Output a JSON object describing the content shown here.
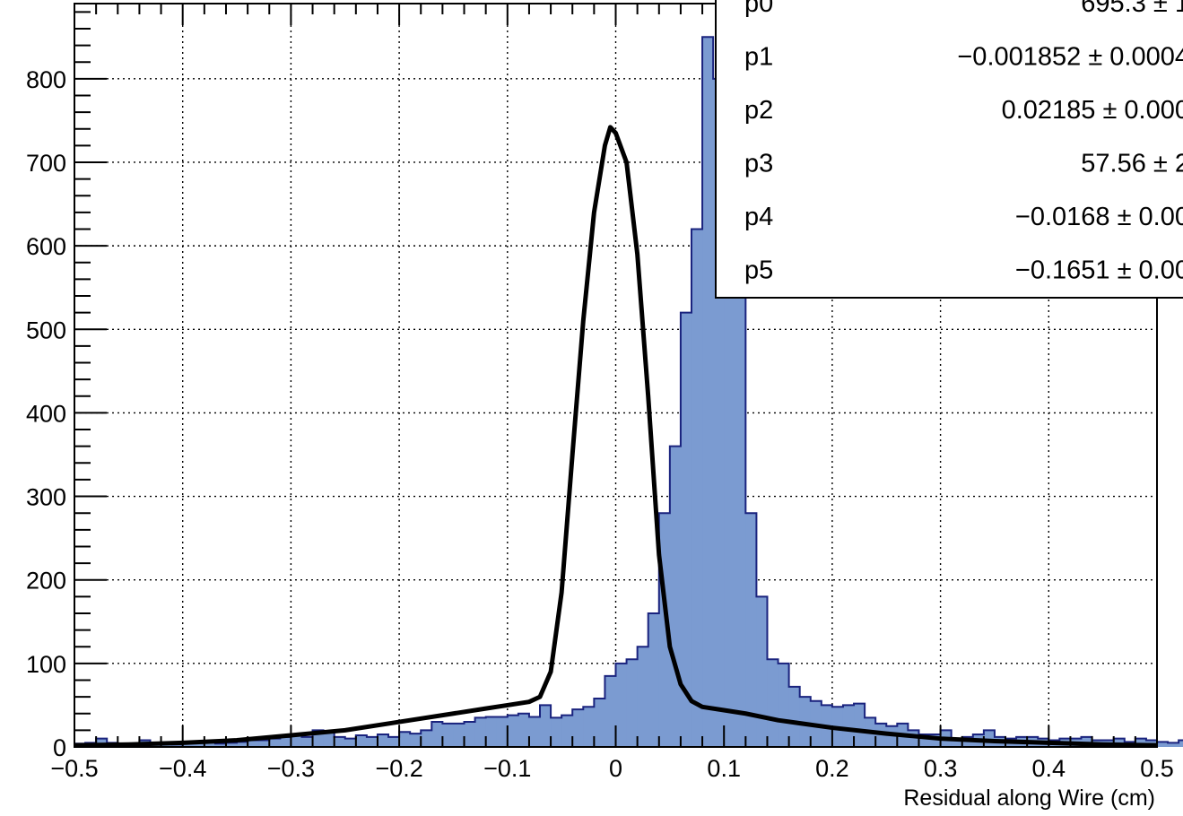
{
  "chart_data": {
    "type": "bar",
    "xlabel": "Residual along Wire (cm)",
    "ylabel": "",
    "xlim": [
      -0.5,
      0.5
    ],
    "ylim": [
      0,
      890
    ],
    "grid": true,
    "x_ticks": [
      -0.5,
      -0.4,
      -0.3,
      -0.2,
      -0.1,
      0,
      0.1,
      0.2,
      0.3,
      0.4,
      0.5
    ],
    "x_tick_labels": [
      "−0.5",
      "−0.4",
      "−0.3",
      "−0.2",
      "−0.1",
      "0",
      "0.1",
      "0.2",
      "0.3",
      "0.4",
      "0.5"
    ],
    "y_ticks": [
      0,
      100,
      200,
      300,
      400,
      500,
      600,
      700,
      800
    ],
    "y_tick_labels": [
      "0",
      "100",
      "200",
      "300",
      "400",
      "500",
      "600",
      "700",
      "800"
    ],
    "bin_width": 0.01,
    "bin_edges_start": -0.5,
    "histogram_values": [
      4,
      5,
      10,
      5,
      3,
      4,
      8,
      4,
      4,
      3,
      6,
      6,
      6,
      4,
      5,
      6,
      8,
      8,
      10,
      12,
      15,
      12,
      20,
      18,
      12,
      10,
      14,
      12,
      15,
      12,
      18,
      16,
      20,
      30,
      28,
      28,
      30,
      35,
      36,
      36,
      38,
      40,
      36,
      50,
      35,
      38,
      45,
      48,
      58,
      85,
      100,
      105,
      120,
      160,
      280,
      360,
      520,
      620,
      850,
      800,
      720,
      560,
      280,
      180,
      105,
      100,
      72,
      60,
      55,
      50,
      48,
      50,
      52,
      35,
      28,
      25,
      28,
      20,
      15,
      15,
      20,
      10,
      12,
      15,
      20,
      12,
      10,
      12,
      12,
      10,
      8,
      10,
      10,
      12,
      8,
      8,
      10,
      6,
      10,
      8,
      6,
      5,
      8,
      6,
      6
    ],
    "fit_curve": {
      "x": [
        -0.5,
        -0.45,
        -0.4,
        -0.35,
        -0.3,
        -0.25,
        -0.2,
        -0.15,
        -0.12,
        -0.1,
        -0.08,
        -0.07,
        -0.06,
        -0.05,
        -0.04,
        -0.03,
        -0.02,
        -0.01,
        -0.005,
        0.0,
        0.01,
        0.02,
        0.03,
        0.04,
        0.05,
        0.06,
        0.07,
        0.08,
        0.1,
        0.12,
        0.15,
        0.2,
        0.25,
        0.3,
        0.35,
        0.4,
        0.45,
        0.5
      ],
      "y": [
        2,
        3,
        5,
        8,
        14,
        20,
        30,
        40,
        46,
        50,
        54,
        60,
        90,
        185,
        350,
        510,
        640,
        720,
        742,
        735,
        700,
        590,
        420,
        230,
        120,
        75,
        55,
        48,
        44,
        40,
        32,
        23,
        16,
        10,
        7,
        5,
        3,
        2
      ]
    },
    "series": [
      {
        "name": "",
        "values": "histogram_values",
        "color": "#7b9bd1",
        "edge_color": "#1a237e"
      },
      {
        "name": "",
        "values": "fit_curve",
        "color": "#000000"
      }
    ],
    "stats_box": {
      "rows": [
        {
          "label": "p0",
          "value": "695.3 ± 1"
        },
        {
          "label": "p1",
          "value": "−0.001852 ± 0.0004"
        },
        {
          "label": "p2",
          "value": "0.02185 ± 0.000"
        },
        {
          "label": "p3",
          "value": "57.56 ± 2"
        },
        {
          "label": "p4",
          "value": "−0.0168 ± 0.00"
        },
        {
          "label": "p5",
          "value": "−0.1651 ± 0.00"
        }
      ]
    }
  }
}
